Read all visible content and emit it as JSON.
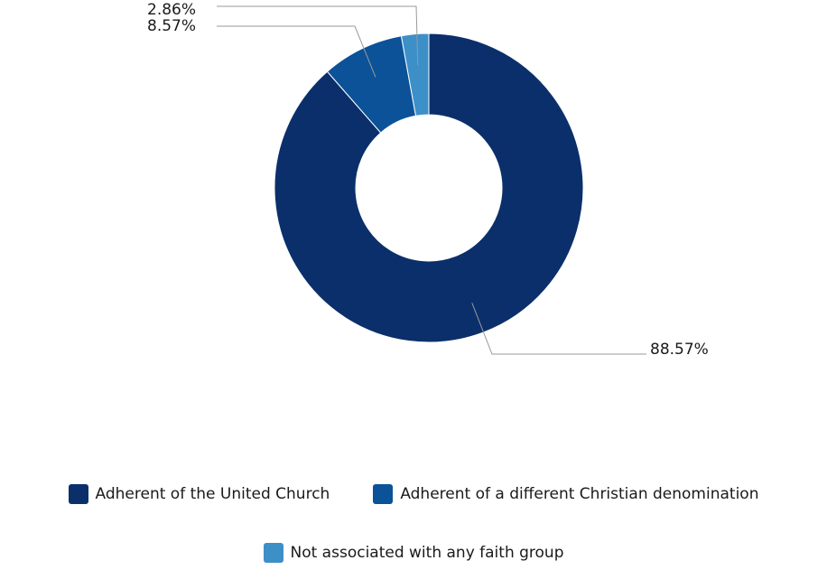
{
  "chart_data": {
    "type": "pie",
    "donut": true,
    "categories": [
      "Adherent of the United Church",
      "Adherent of a different Christian denomination",
      "Not associated with any faith group"
    ],
    "values": [
      88.57,
      8.57,
      2.86
    ],
    "value_labels": [
      "88.57%",
      "8.57%",
      "2.86%"
    ],
    "colors": [
      "#0b2f6b",
      "#0b5298",
      "#3d8fc8"
    ],
    "legend_position": "bottom",
    "title": "",
    "grid": false
  }
}
